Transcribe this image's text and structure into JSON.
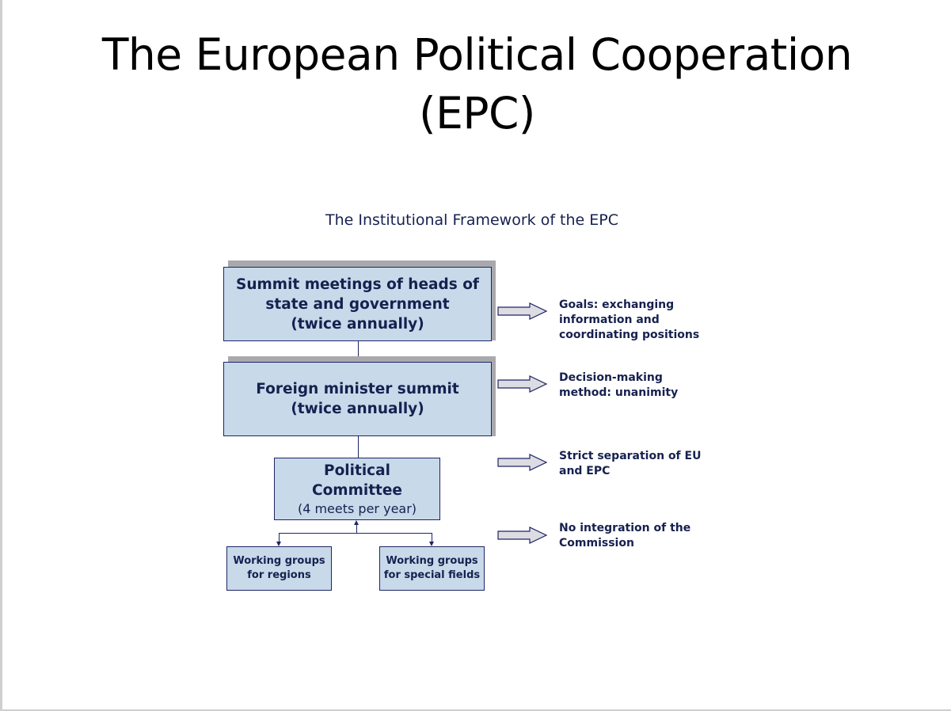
{
  "slide": {
    "title_line1": "The European Political Cooperation",
    "title_line2": "(EPC)"
  },
  "diagram": {
    "title": "The Institutional Framework of the EPC",
    "boxes": {
      "summit": {
        "line1": "Summit meetings of heads of",
        "line2": "state and government",
        "line3": "(twice annually)"
      },
      "foreign": {
        "line1": "Foreign minister summit",
        "line2": "(twice annually)"
      },
      "political": {
        "line1": "Political",
        "line2": "Committee",
        "line3": "(4 meets per year)"
      },
      "regions": {
        "line1": "Working groups",
        "line2": "for regions"
      },
      "special": {
        "line1": "Working groups",
        "line2": "for special fields"
      }
    },
    "notes": [
      {
        "line1": "Goals: exchanging",
        "line2": "information and",
        "line3": "coordinating positions"
      },
      {
        "line1": "Decision-making",
        "line2": "method: unanimity"
      },
      {
        "line1": "Strict separation of EU",
        "line2": "and EPC"
      },
      {
        "line1": "No integration of the",
        "line2": "Commission"
      }
    ],
    "colors": {
      "box_fill": "#c8d9ea",
      "box_border": "#1e2566",
      "text": "#16214f",
      "shadow": "#a9a9ad",
      "arrow_fill": "#dcdce2"
    }
  }
}
